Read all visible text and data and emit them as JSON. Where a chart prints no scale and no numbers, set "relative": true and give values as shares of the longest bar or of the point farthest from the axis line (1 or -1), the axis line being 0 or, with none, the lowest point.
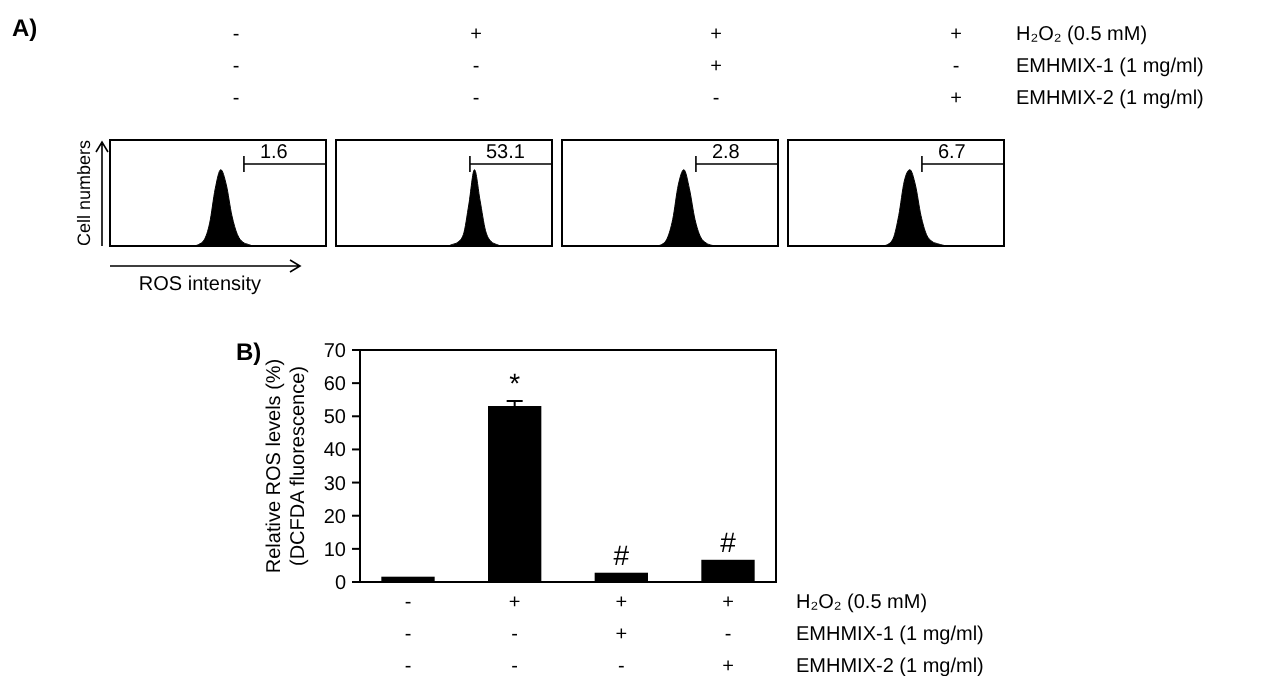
{
  "chart_data": [
    {
      "type": "other",
      "title": "A)",
      "categories": [
        "- - -",
        "+ - -",
        "+ + -",
        "+ - +"
      ],
      "annotations": [
        "H₂O₂ (0.5 mM)",
        "EMHMIX-1 (1 mg/ml)",
        "EMHMIX-2 (1 mg/ml)"
      ]
    },
    {
      "type": "area",
      "relative": true,
      "xlabel": "ROS intensity",
      "ylabel": "Cell numbers",
      "color": "#000000",
      "annotations": [
        "1.6"
      ],
      "categories": [
        null,
        null,
        null,
        null,
        null,
        null,
        null,
        null,
        null,
        null,
        null,
        null,
        null,
        null,
        null,
        null,
        null,
        null,
        null,
        null,
        null,
        null,
        null,
        null,
        null,
        null,
        null,
        null,
        null,
        null,
        null,
        null,
        null,
        null,
        null,
        null,
        null,
        null,
        null,
        null
      ],
      "values": [
        0,
        0,
        0,
        0,
        0,
        0,
        0,
        0,
        0,
        0,
        0,
        0,
        0,
        0,
        0,
        0,
        0.02,
        0.08,
        0.3,
        0.75,
        1,
        0.8,
        0.4,
        0.15,
        0.05,
        0.02,
        0,
        0,
        0,
        0,
        0,
        0,
        0,
        0,
        0,
        0,
        0,
        0,
        0,
        0
      ]
    },
    {
      "type": "area",
      "relative": true,
      "color": "#000000",
      "annotations": [
        "53.1"
      ],
      "categories": [
        null,
        null,
        null,
        null,
        null,
        null,
        null,
        null,
        null,
        null,
        null,
        null,
        null,
        null,
        null,
        null,
        null,
        null,
        null,
        null,
        null,
        null,
        null,
        null,
        null,
        null,
        null,
        null,
        null,
        null,
        null,
        null,
        null,
        null,
        null,
        null,
        null,
        null,
        null,
        null
      ],
      "values": [
        0,
        0,
        0,
        0,
        0,
        0,
        0,
        0,
        0,
        0,
        0,
        0,
        0,
        0,
        0,
        0,
        0,
        0,
        0,
        0,
        0,
        0.02,
        0.05,
        0.15,
        0.55,
        1,
        0.6,
        0.2,
        0.06,
        0.02,
        0,
        0,
        0,
        0,
        0,
        0,
        0,
        0,
        0,
        0
      ]
    },
    {
      "type": "area",
      "relative": true,
      "color": "#000000",
      "annotations": [
        "2.8"
      ],
      "categories": [
        null,
        null,
        null,
        null,
        null,
        null,
        null,
        null,
        null,
        null,
        null,
        null,
        null,
        null,
        null,
        null,
        null,
        null,
        null,
        null,
        null,
        null,
        null,
        null,
        null,
        null,
        null,
        null,
        null,
        null,
        null,
        null,
        null,
        null,
        null,
        null,
        null,
        null,
        null,
        null
      ],
      "values": [
        0,
        0,
        0,
        0,
        0,
        0,
        0,
        0,
        0,
        0,
        0,
        0,
        0,
        0,
        0,
        0,
        0,
        0,
        0.02,
        0.1,
        0.35,
        0.8,
        1,
        0.75,
        0.35,
        0.12,
        0.04,
        0.01,
        0,
        0,
        0,
        0,
        0,
        0,
        0,
        0,
        0,
        0,
        0,
        0
      ]
    },
    {
      "type": "area",
      "relative": true,
      "color": "#000000",
      "annotations": [
        "6.7"
      ],
      "categories": [
        null,
        null,
        null,
        null,
        null,
        null,
        null,
        null,
        null,
        null,
        null,
        null,
        null,
        null,
        null,
        null,
        null,
        null,
        null,
        null,
        null,
        null,
        null,
        null,
        null,
        null,
        null,
        null,
        null,
        null,
        null,
        null,
        null,
        null,
        null,
        null,
        null,
        null,
        null,
        null
      ],
      "values": [
        0,
        0,
        0,
        0,
        0,
        0,
        0,
        0,
        0,
        0,
        0,
        0,
        0,
        0,
        0,
        0,
        0,
        0,
        0.02,
        0.1,
        0.4,
        0.85,
        1,
        0.8,
        0.4,
        0.15,
        0.06,
        0.03,
        0.01,
        0,
        0,
        0,
        0,
        0,
        0,
        0,
        0,
        0,
        0,
        0
      ]
    },
    {
      "type": "bar",
      "title": "B)",
      "ylabel": "Relative ROS levels (%)\n(DCFDA fluorescence)",
      "categories": [
        "- - -",
        "+ - -",
        "+ + -",
        "+ - +"
      ],
      "values": [
        1.6,
        53.1,
        2.8,
        6.7
      ],
      "errors": [
        null,
        1.5,
        null,
        null
      ],
      "color": "#000000",
      "ylim": [
        0,
        70
      ],
      "yticks": [
        0,
        10,
        20,
        30,
        40,
        50,
        60,
        70
      ],
      "annotations": [
        {
          "text": "*",
          "x": "+ - -",
          "y": 53.1
        },
        {
          "text": "#",
          "x": "+ + -",
          "y": 2.8
        },
        {
          "text": "#",
          "x": "+ - +",
          "y": 6.7
        },
        "H₂O₂ (0.5 mM)",
        "EMHMIX-1 (1 mg/ml)",
        "EMHMIX-2 (1 mg/ml)"
      ]
    }
  ]
}
